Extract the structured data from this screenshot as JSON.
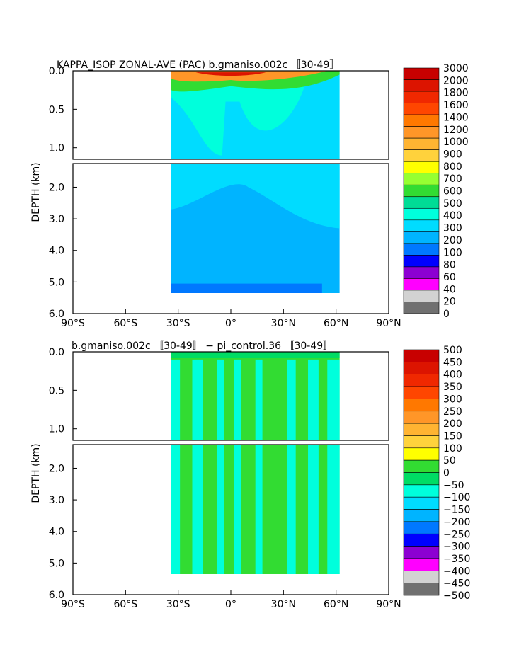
{
  "chart_data": [
    {
      "type": "heatmap",
      "title": "KAPPA_ISOP ZONAL-AVE (PAC) b.gmaniso.002c 〚30-49〛",
      "ylabel": "DEPTH (km)",
      "xlabel": "",
      "x_ticks": [
        "90°S",
        "60°S",
        "30°S",
        "0°",
        "30°N",
        "60°N",
        "90°N"
      ],
      "y_ticks_upper": [
        "0.0",
        "0.5",
        "1.0"
      ],
      "y_ticks_lower": [
        "2.0",
        "3.0",
        "4.0",
        "5.0",
        "6.0"
      ],
      "xlim": [
        -90,
        90
      ],
      "ylim_km": [
        6.0,
        0.0
      ],
      "data_x_range": [
        -34,
        62
      ],
      "colorbar_levels": [
        "3000",
        "2000",
        "1800",
        "1600",
        "1400",
        "1200",
        "1000",
        "900",
        "800",
        "700",
        "600",
        "500",
        "400",
        "300",
        "200",
        "100",
        "80",
        "60",
        "40",
        "20",
        "0"
      ],
      "colorbar_colors": [
        "#c80000",
        "#dc1400",
        "#f02800",
        "#ff4600",
        "#ff7800",
        "#ff9628",
        "#ffb432",
        "#ffd23c",
        "#ffff00",
        "#96ff32",
        "#32dc32",
        "#00dc96",
        "#00ffdc",
        "#00dcff",
        "#00b4ff",
        "#0078ff",
        "#0000ff",
        "#8c00d2",
        "#ff00ff",
        "#d2d2d2",
        "#707070"
      ],
      "dominant_values": {
        "upper_surface_max": 2000,
        "upper_interior": 400,
        "deep_interior": 250,
        "bottom_layer": 150
      }
    },
    {
      "type": "heatmap",
      "title": "b.gmaniso.002c 〚30-49〛 − pi_control.36 〚30-49〛",
      "ylabel": "DEPTH (km)",
      "xlabel": "",
      "x_ticks": [
        "90°S",
        "60°S",
        "30°S",
        "0°",
        "30°N",
        "60°N",
        "90°N"
      ],
      "y_ticks_upper": [
        "0.0",
        "0.5",
        "1.0"
      ],
      "y_ticks_lower": [
        "2.0",
        "3.0",
        "4.0",
        "5.0",
        "6.0"
      ],
      "xlim": [
        -90,
        90
      ],
      "ylim_km": [
        6.0,
        0.0
      ],
      "data_x_range": [
        -34,
        62
      ],
      "colorbar_levels": [
        "500",
        "450",
        "400",
        "350",
        "300",
        "250",
        "200",
        "150",
        "100",
        "50",
        "0",
        "−50",
        "−100",
        "−150",
        "−200",
        "−250",
        "−300",
        "−350",
        "−400",
        "−450",
        "−500"
      ],
      "colorbar_colors": [
        "#c80000",
        "#dc1400",
        "#f02800",
        "#ff4600",
        "#ff7800",
        "#ff9628",
        "#ffb432",
        "#ffd23c",
        "#ffff00",
        "#32dc32",
        "#00dc64",
        "#00ffdc",
        "#00dcff",
        "#00b4ff",
        "#0078ff",
        "#0000ff",
        "#8c00d2",
        "#ff00ff",
        "#d2d2d2",
        "#707070"
      ],
      "dominant_values": {
        "mostly": "0 to 50",
        "bands": "-50 to 0"
      }
    }
  ]
}
